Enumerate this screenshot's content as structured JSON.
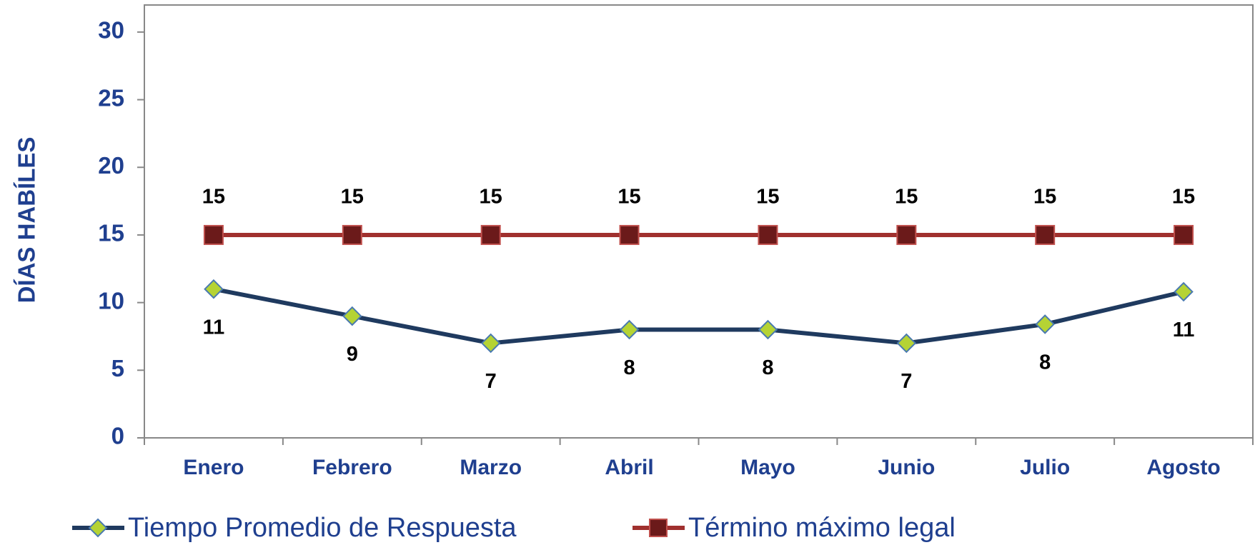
{
  "chart_data": {
    "type": "line",
    "y_label": "DÍAS HABÍLES",
    "categories": [
      "Enero",
      "Febrero",
      "Marzo",
      "Abril",
      "Mayo",
      "Junio",
      "Julio",
      "Agosto"
    ],
    "series": [
      {
        "name": "Tiempo Promedio de Respuesta",
        "color": "#1f3a5f",
        "marker": "diamond",
        "marker_color": "#b5d334",
        "values": [
          11,
          9,
          7,
          8,
          8,
          7,
          8.4,
          10.8
        ],
        "value_labels": [
          "11",
          "9",
          "7",
          "8",
          "8",
          "7",
          "8",
          "11"
        ],
        "label_position": "below"
      },
      {
        "name": "Término máximo legal",
        "color": "#a0302e",
        "marker": "square",
        "marker_color": "#6b1a1a",
        "values": [
          15,
          15,
          15,
          15,
          15,
          15,
          15,
          15
        ],
        "label_position": "above"
      }
    ],
    "ylim": [
      0,
      32
    ],
    "yticks": [
      0,
      5,
      10,
      15,
      20,
      25,
      30
    ],
    "grid": false,
    "legend": "bottom"
  }
}
